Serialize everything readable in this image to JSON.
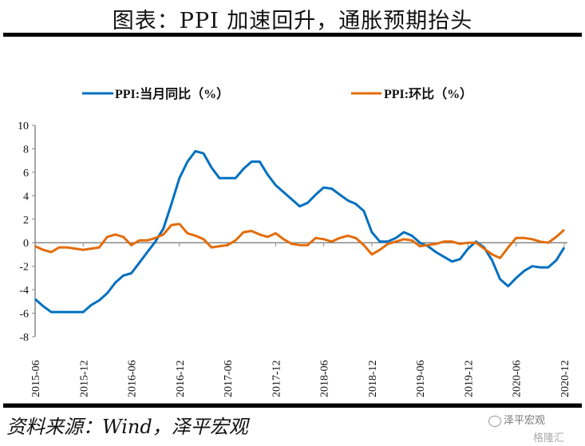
{
  "title": "图表：PPI 加速回升，通胀预期抬头",
  "source": "资料来源：Wind，泽平宏观",
  "watermark": {
    "line1": "泽平宏观",
    "line2": "格隆汇"
  },
  "colors": {
    "yoy": "#0070C0",
    "mom": "#E36C0A",
    "axis": "#888888"
  },
  "chart_data": {
    "type": "line",
    "title": "",
    "xlabel": "",
    "ylabel": "",
    "ylim": [
      -8,
      10
    ],
    "yticks": [
      "10",
      "8",
      "6",
      "4",
      "2",
      "0",
      "-2",
      "-4",
      "-6",
      "-8"
    ],
    "ytick_values": [
      10,
      8,
      6,
      4,
      2,
      0,
      -2,
      -4,
      -6,
      -8
    ],
    "xtick_labels": [
      "2015-06",
      "2015-12",
      "2016-06",
      "2016-12",
      "2017-06",
      "2017-12",
      "2018-06",
      "2018-12",
      "2019-06",
      "2019-12",
      "2020-06",
      "2020-12"
    ],
    "legend_position": "top",
    "grid": false,
    "x": [
      "2015-06",
      "2015-07",
      "2015-08",
      "2015-09",
      "2015-10",
      "2015-11",
      "2015-12",
      "2016-01",
      "2016-02",
      "2016-03",
      "2016-04",
      "2016-05",
      "2016-06",
      "2016-07",
      "2016-08",
      "2016-09",
      "2016-10",
      "2016-11",
      "2016-12",
      "2017-01",
      "2017-02",
      "2017-03",
      "2017-04",
      "2017-05",
      "2017-06",
      "2017-07",
      "2017-08",
      "2017-09",
      "2017-10",
      "2017-11",
      "2017-12",
      "2018-01",
      "2018-02",
      "2018-03",
      "2018-04",
      "2018-05",
      "2018-06",
      "2018-07",
      "2018-08",
      "2018-09",
      "2018-10",
      "2018-11",
      "2018-12",
      "2019-01",
      "2019-02",
      "2019-03",
      "2019-04",
      "2019-05",
      "2019-06",
      "2019-07",
      "2019-08",
      "2019-09",
      "2019-10",
      "2019-11",
      "2019-12",
      "2020-01",
      "2020-02",
      "2020-03",
      "2020-04",
      "2020-05",
      "2020-06",
      "2020-07",
      "2020-08",
      "2020-09",
      "2020-10",
      "2020-11",
      "2020-12"
    ],
    "series": [
      {
        "name": "PPI:当月同比（%）",
        "color": "#0070C0",
        "values": [
          -4.8,
          -5.4,
          -5.9,
          -5.9,
          -5.9,
          -5.9,
          -5.9,
          -5.3,
          -4.9,
          -4.3,
          -3.4,
          -2.8,
          -2.6,
          -1.7,
          -0.8,
          0.1,
          1.2,
          3.3,
          5.5,
          6.9,
          7.8,
          7.6,
          6.4,
          5.5,
          5.5,
          5.5,
          6.3,
          6.9,
          6.9,
          5.8,
          4.9,
          4.3,
          3.7,
          3.1,
          3.4,
          4.1,
          4.7,
          4.6,
          4.1,
          3.6,
          3.3,
          2.7,
          0.9,
          0.1,
          0.1,
          0.4,
          0.9,
          0.6,
          0.0,
          -0.3,
          -0.8,
          -1.2,
          -1.6,
          -1.4,
          -0.5,
          0.1,
          -0.4,
          -1.5,
          -3.1,
          -3.7,
          -3.0,
          -2.4,
          -2.0,
          -2.1,
          -2.1,
          -1.5,
          -0.4
        ]
      },
      {
        "name": "PPI:环比（%）",
        "color": "#E36C0A",
        "values": [
          -0.3,
          -0.6,
          -0.8,
          -0.4,
          -0.4,
          -0.5,
          -0.6,
          -0.5,
          -0.4,
          0.5,
          0.7,
          0.5,
          -0.2,
          0.2,
          0.2,
          0.4,
          0.7,
          1.5,
          1.6,
          0.8,
          0.6,
          0.3,
          -0.4,
          -0.3,
          -0.2,
          0.2,
          0.9,
          1.0,
          0.7,
          0.5,
          0.8,
          0.3,
          -0.1,
          -0.2,
          -0.2,
          0.4,
          0.3,
          0.1,
          0.4,
          0.6,
          0.4,
          -0.2,
          -1.0,
          -0.6,
          -0.1,
          0.1,
          0.3,
          0.2,
          -0.3,
          -0.2,
          -0.1,
          0.1,
          0.1,
          -0.1,
          0.0,
          0.0,
          -0.5,
          -1.0,
          -1.3,
          -0.4,
          0.4,
          0.4,
          0.3,
          0.1,
          0.0,
          0.5,
          1.1
        ]
      }
    ]
  }
}
